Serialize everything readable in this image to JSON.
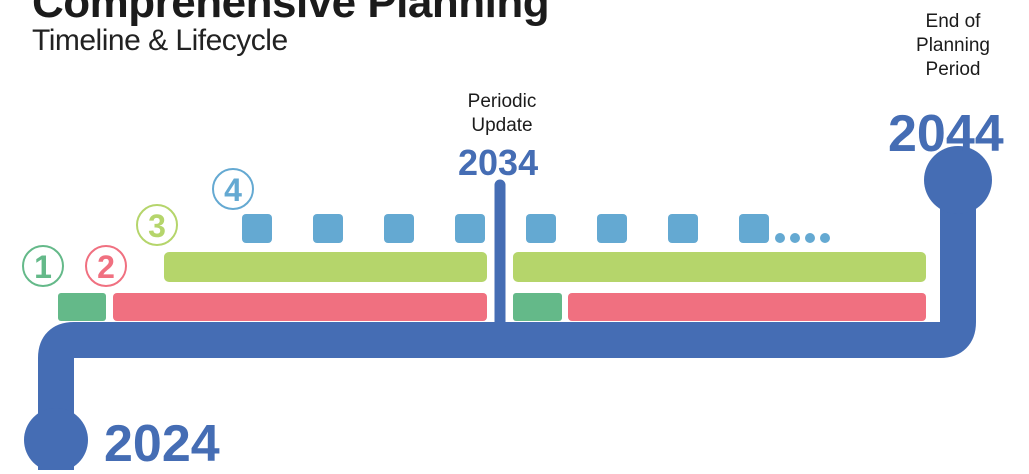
{
  "header": {
    "title": "Comprehensive Planning",
    "subtitle": "Timeline & Lifecycle"
  },
  "milestones": {
    "start_year": "2024",
    "mid_label_line1": "Periodic",
    "mid_label_line2": "Update",
    "mid_year": "2034",
    "end_label_line1": "End of",
    "end_label_line2": "Planning",
    "end_label_line3": "Period",
    "end_year": "2044"
  },
  "phases": {
    "phase1": {
      "number": "1",
      "color": "#64b989"
    },
    "phase2": {
      "number": "2",
      "color": "#f07080"
    },
    "phase3": {
      "number": "3",
      "color": "#b5d56b"
    },
    "phase4": {
      "number": "4",
      "color": "#64a9d2"
    }
  },
  "colors": {
    "timeline": "#456db4",
    "title": "#1b1b1b"
  }
}
